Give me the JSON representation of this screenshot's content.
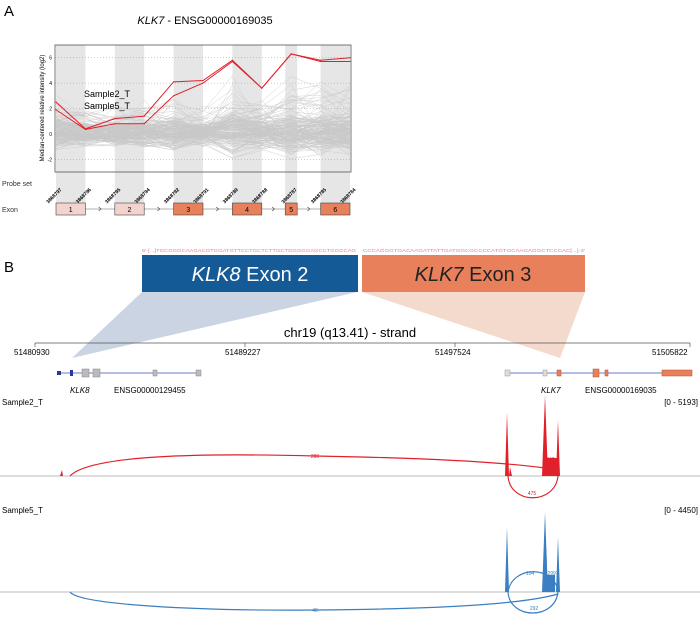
{
  "panel_a": {
    "label": "A",
    "title_gene": "KLK7",
    "title_rest": " - ENSG00000169035",
    "row_probe_label": "Probe set",
    "row_exon_label": "Exon",
    "exons": [
      {
        "label": "1",
        "color": "#f2d3ce"
      },
      {
        "label": "2",
        "color": "#f2d3ce"
      },
      {
        "label": "3",
        "color": "#e8805c"
      },
      {
        "label": "4",
        "color": "#e8805c"
      },
      {
        "label": "5",
        "color": "#e8805c"
      },
      {
        "label": "6",
        "color": "#e8805c"
      }
    ]
  },
  "chart_data": {
    "type": "line",
    "ylabel": "Median-centered relative intensity (log2)",
    "categories": [
      "3868797",
      "3868796",
      "3868795",
      "3868794",
      "3868792",
      "3868791",
      "3868789",
      "3868788",
      "3868787",
      "3868785",
      "3868784"
    ],
    "yticks": [
      -2,
      0,
      2,
      4,
      6
    ],
    "ylim": [
      -3,
      7
    ],
    "grid": "horizontal-dotted",
    "series": [
      {
        "name": "Sample2_T",
        "color": "#e0202a",
        "values": [
          2.5,
          0.4,
          1.2,
          1.4,
          4.1,
          4.2,
          5.8,
          3.6,
          6.3,
          5.8,
          6.0
        ]
      },
      {
        "name": "Sample5_T",
        "color": "#e0202a",
        "values": [
          1.9,
          0.35,
          0.8,
          0.8,
          3.0,
          4.0,
          5.7,
          3.6,
          6.3,
          5.7,
          5.7
        ]
      }
    ],
    "background_color": "#c8c8c8"
  },
  "panel_b": {
    "label": "B",
    "seq_left": "5'-[...]TGCGGGCAAGACGTGGATGTTCCTGCTCTTGCTGGGGGAGCCTGGGCAG",
    "seq_right": "CCCAGGGTGACAAGATTATTGATGGCGCCCCATGTGCAAGAGGCTCCCAC[...]-3'",
    "fusion_left": {
      "gene": "KLK8",
      "text": " Exon 2",
      "color": "#145a96"
    },
    "fusion_right": {
      "gene": "KLK7",
      "text": " Exon 3",
      "color": "#e8805c"
    },
    "locus": "chr19 (q13.41) - strand",
    "coords": [
      "51480930",
      "51489227",
      "51497524",
      "51505822"
    ],
    "genes": [
      {
        "symbol": "KLK8",
        "id": "ENSG00000129455"
      },
      {
        "symbol": "KLK7",
        "id": "ENSG00000169035"
      }
    ],
    "tracks": [
      {
        "name": "Sample2_T",
        "range": "[0 - 5193]",
        "color": "#e0202a",
        "junctions": [
          "280",
          "3247",
          "475"
        ]
      },
      {
        "name": "Sample5_T",
        "range": "[0 - 4450]",
        "color": "#3a7fc1",
        "junctions": [
          "48",
          "104",
          "2997",
          "292"
        ]
      }
    ]
  }
}
